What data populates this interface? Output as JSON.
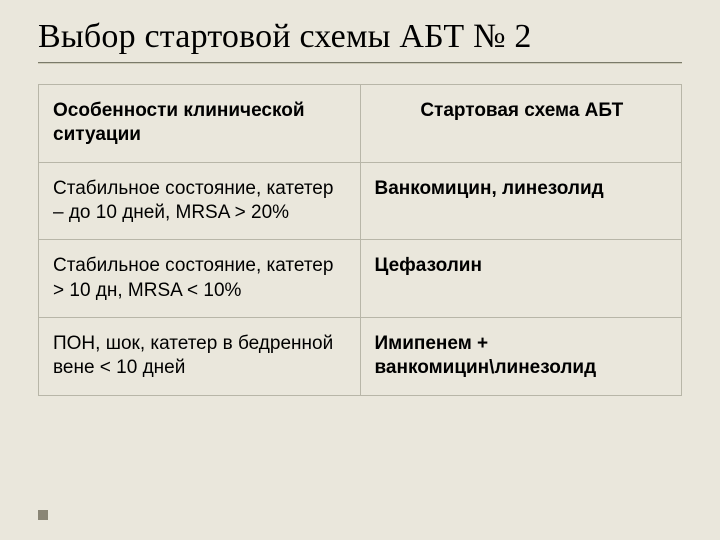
{
  "slide": {
    "title": "Выбор стартовой схемы АБТ № 2",
    "table": {
      "type": "table",
      "background_color": "#eae7dc",
      "border_color": "#b8b6a8",
      "header_fontsize": 19,
      "cell_fontsize": 19,
      "header_fontweight": 700,
      "columns": [
        {
          "key": "situation",
          "label": "Особенности клинической ситуации",
          "width_pct": 50,
          "align": "left",
          "header_align": "left"
        },
        {
          "key": "scheme",
          "label": "Стартовая схема АБТ",
          "width_pct": 50,
          "align": "left",
          "header_align": "center",
          "cell_fontweight": 700
        }
      ],
      "rows": [
        {
          "situation": "Стабильное состояние, катетер – до 10 дней, MRSA  > 20%",
          "scheme": "Ванкомицин, линезолид"
        },
        {
          "situation": "Стабильное состояние, катетер > 10 дн, MRSA < 10%",
          "scheme": "Цефазолин"
        },
        {
          "situation": "ПОН, шок, катетер в бедренной вене < 10 дней",
          "scheme": "Имипенем + ванкомицин\\линезолид"
        }
      ]
    },
    "footer_marker_color": "#8a8676"
  }
}
